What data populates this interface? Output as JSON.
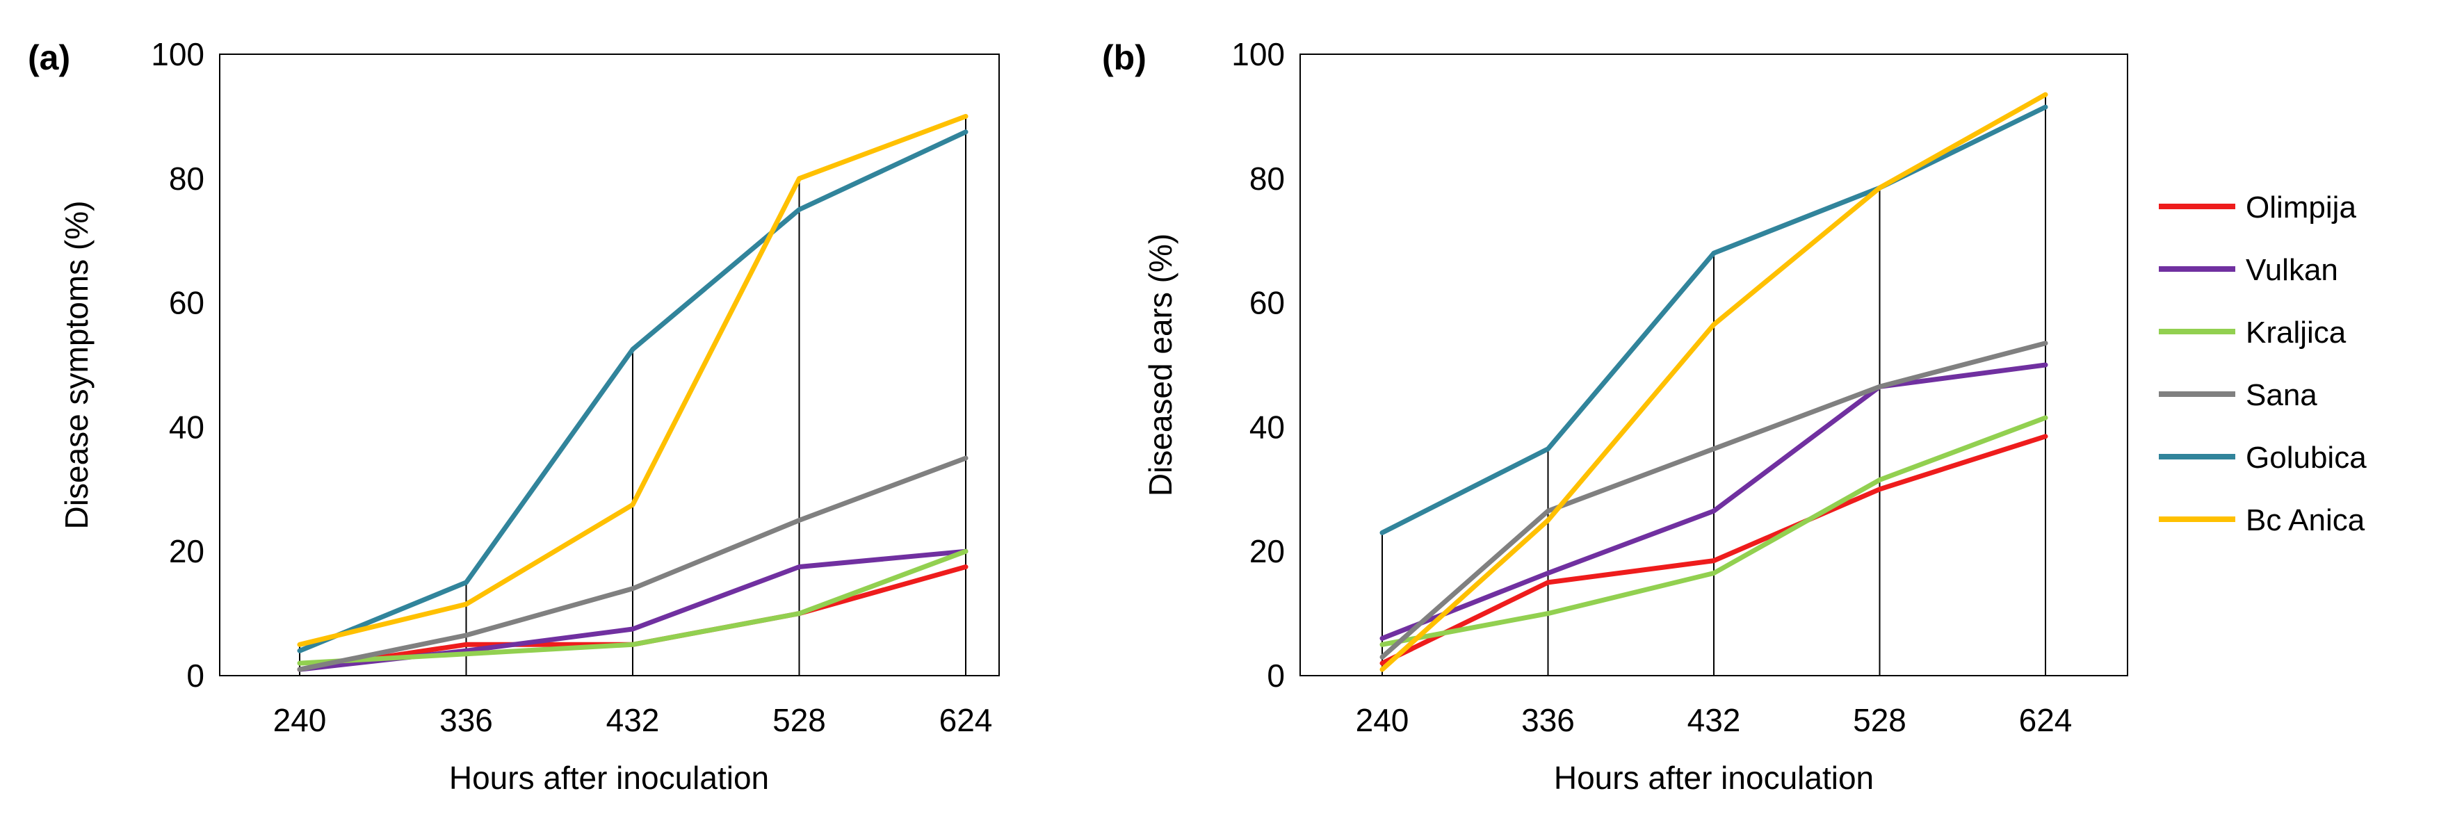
{
  "chart_data": [
    {
      "panel_label": "(a)",
      "type": "line",
      "categories": [
        "240",
        "336",
        "432",
        "528",
        "624"
      ],
      "xlabel": "Hours after inoculation",
      "ylabel": "Disease symptoms (%)",
      "ylim": [
        0,
        100
      ],
      "yticks": [
        "0",
        "20",
        "40",
        "60",
        "80",
        "100"
      ],
      "drop_lines": true,
      "series": [
        {
          "name": "Olimpija",
          "values": [
            1,
            5,
            5,
            10,
            17.5
          ]
        },
        {
          "name": "Vulkan",
          "values": [
            1,
            4,
            7.5,
            17.5,
            20
          ]
        },
        {
          "name": "Kraljica",
          "values": [
            2,
            3.5,
            5,
            10,
            20
          ]
        },
        {
          "name": "Sana",
          "values": [
            1,
            6.5,
            14,
            25,
            35
          ]
        },
        {
          "name": "Golubica",
          "values": [
            4,
            15,
            52.5,
            75,
            87.5
          ]
        },
        {
          "name": "Bc Anica",
          "values": [
            5,
            11.5,
            27.5,
            80,
            90
          ]
        }
      ]
    },
    {
      "panel_label": "(b)",
      "type": "line",
      "categories": [
        "240",
        "336",
        "432",
        "528",
        "624"
      ],
      "xlabel": "Hours after inoculation",
      "ylabel": "Diseased ears (%)",
      "ylim": [
        0,
        100
      ],
      "yticks": [
        "0",
        "20",
        "40",
        "60",
        "80",
        "100"
      ],
      "drop_lines": true,
      "series": [
        {
          "name": "Olimpija",
          "values": [
            2,
            15,
            18.5,
            30,
            38.5
          ]
        },
        {
          "name": "Vulkan",
          "values": [
            6,
            16.5,
            26.5,
            46.5,
            50
          ]
        },
        {
          "name": "Kraljica",
          "values": [
            5,
            10,
            16.5,
            31.5,
            41.5
          ]
        },
        {
          "name": "Sana",
          "values": [
            3,
            26.5,
            36.5,
            46.5,
            53.5
          ]
        },
        {
          "name": "Golubica",
          "values": [
            23,
            36.5,
            68,
            78.5,
            91.5
          ]
        },
        {
          "name": "Bc Anica",
          "values": [
            1,
            25,
            56.5,
            78.5,
            93.5
          ]
        }
      ]
    }
  ],
  "legend": {
    "placement": "right",
    "entries": [
      {
        "name": "Olimpija",
        "color": "#ee1c1c"
      },
      {
        "name": "Vulkan",
        "color": "#7030a0"
      },
      {
        "name": "Kraljica",
        "color": "#92d050"
      },
      {
        "name": "Sana",
        "color": "#808080"
      },
      {
        "name": "Golubica",
        "color": "#31849b"
      },
      {
        "name": "Bc Anica",
        "color": "#ffc000"
      }
    ]
  }
}
